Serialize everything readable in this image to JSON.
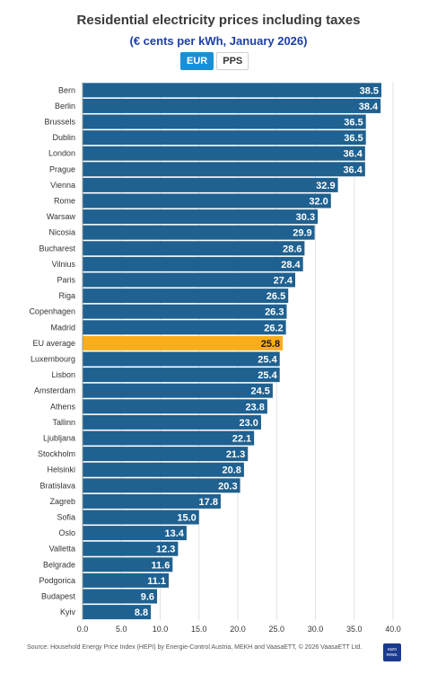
{
  "title": "Residential electricity prices including taxes",
  "subtitle": "(€ cents per kWh, January 2026)",
  "toggle": {
    "eur_label": "EUR",
    "pps_label": "PPS",
    "selected": "EUR"
  },
  "colors": {
    "bar": "#1f6190",
    "highlight": "#f9ad1a",
    "grid": "#e2e2e2"
  },
  "source": "Source: Household Energy Price Index (HEPI) by Energie-Control Austria, MEKH and VaasaETT, © 2026 VaasaETT Ltd.",
  "logo_text": "euro news.",
  "chart_data": {
    "type": "bar",
    "orientation": "horizontal",
    "categories": [
      "Bern",
      "Berlin",
      "Brussels",
      "Dublin",
      "London",
      "Prague",
      "Vienna",
      "Rome",
      "Warsaw",
      "Nicosia",
      "Bucharest",
      "Vilnius",
      "Paris",
      "Riga",
      "Copenhagen",
      "Madrid",
      "EU average",
      "Luxembourg",
      "Lisbon",
      "Amsterdam",
      "Athens",
      "Tallinn",
      "Ljubljana",
      "Stockholm",
      "Helsinki",
      "Bratislava",
      "Zagreb",
      "Sofia",
      "Oslo",
      "Valletta",
      "Belgrade",
      "Podgorica",
      "Budapest",
      "Kyiv"
    ],
    "values": [
      38.5,
      38.4,
      36.5,
      36.5,
      36.4,
      36.4,
      32.9,
      32.0,
      30.3,
      29.9,
      28.6,
      28.4,
      27.4,
      26.5,
      26.3,
      26.2,
      25.8,
      25.4,
      25.4,
      24.5,
      23.8,
      23.0,
      22.1,
      21.3,
      20.8,
      20.3,
      17.8,
      15.0,
      13.4,
      12.3,
      11.6,
      11.1,
      9.6,
      8.8
    ],
    "value_labels": [
      "38.5",
      "38.4",
      "36.5",
      "36.5",
      "36.4",
      "36.4",
      "32.9",
      "32.0",
      "30.3",
      "29.9",
      "28.6",
      "28.4",
      "27.4",
      "26.5",
      "26.3",
      "26.2",
      "25.8",
      "25.4",
      "25.4",
      "24.5",
      "23.8",
      "23.0",
      "22.1",
      "21.3",
      "20.8",
      "20.3",
      "17.8",
      "15.0",
      "13.4",
      "12.3",
      "11.6",
      "11.1",
      "9.6",
      "8.8"
    ],
    "highlight_category": "EU average",
    "xlim": [
      0,
      40
    ],
    "xticks": [
      "0.0",
      "5.0",
      "10.0",
      "15.0",
      "20.0",
      "25.0",
      "30.0",
      "35.0",
      "40.0"
    ],
    "grid": true
  }
}
